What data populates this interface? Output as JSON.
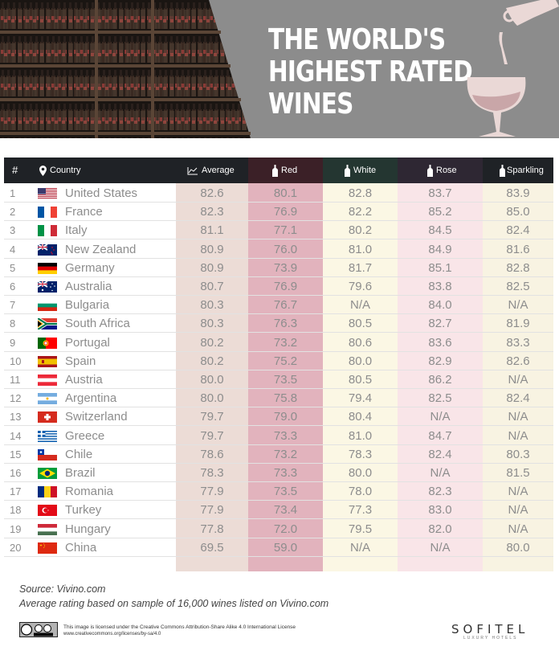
{
  "title": "THE WORLD'S\nHIGHEST RATED\nWINES",
  "colors": {
    "average_col": "#ecdcd6",
    "red_col": "#e2b3bd",
    "white_col": "#fbf7e4",
    "rose_col": "#f9e5e8",
    "sparkling_col": "#f8f3e2",
    "header_bg": "#1f2226",
    "red_header": "#3b2027",
    "white_header": "#243631",
    "rose_header": "#2e2733"
  },
  "chart_data": {
    "type": "table",
    "columns": [
      "#",
      "Country",
      "Average",
      "Red",
      "White",
      "Rose",
      "Sparkling"
    ],
    "rows": [
      {
        "rank": "1",
        "country": "United States",
        "flag": "us-flag",
        "average": "82.6",
        "red": "80.1",
        "white": "82.8",
        "rose": "83.7",
        "sparkling": "83.9"
      },
      {
        "rank": "2",
        "country": "France",
        "flag": "france-flag",
        "average": "82.3",
        "red": "76.9",
        "white": "82.2",
        "rose": "85.2",
        "sparkling": "85.0"
      },
      {
        "rank": "3",
        "country": "Italy",
        "flag": "italy-flag",
        "average": "81.1",
        "red": "77.1",
        "white": "80.2",
        "rose": "84.5",
        "sparkling": "82.4"
      },
      {
        "rank": "4",
        "country": "New Zealand",
        "flag": "new-zealand-flag",
        "average": "80.9",
        "red": "76.0",
        "white": "81.0",
        "rose": "84.9",
        "sparkling": "81.6"
      },
      {
        "rank": "5",
        "country": "Germany",
        "flag": "germany-flag",
        "average": "80.9",
        "red": "73.9",
        "white": "81.7",
        "rose": "85.1",
        "sparkling": "82.8"
      },
      {
        "rank": "6",
        "country": "Australia",
        "flag": "australia-flag",
        "average": "80.7",
        "red": "76.9",
        "white": "79.6",
        "rose": "83.8",
        "sparkling": "82.5"
      },
      {
        "rank": "7",
        "country": "Bulgaria",
        "flag": "bulgaria-flag",
        "average": "80.3",
        "red": "76.7",
        "white": "N/A",
        "rose": "84.0",
        "sparkling": "N/A"
      },
      {
        "rank": "8",
        "country": "South Africa",
        "flag": "south-africa-flag",
        "average": "80.3",
        "red": "76.3",
        "white": "80.5",
        "rose": "82.7",
        "sparkling": "81.9"
      },
      {
        "rank": "9",
        "country": "Portugal",
        "flag": "portugal-flag",
        "average": "80.2",
        "red": "73.2",
        "white": "80.6",
        "rose": "83.6",
        "sparkling": "83.3"
      },
      {
        "rank": "10",
        "country": "Spain",
        "flag": "spain-flag",
        "average": "80.2",
        "red": "75.2",
        "white": "80.0",
        "rose": "82.9",
        "sparkling": "82.6"
      },
      {
        "rank": "11",
        "country": "Austria",
        "flag": "austria-flag",
        "average": "80.0",
        "red": "73.5",
        "white": "80.5",
        "rose": "86.2",
        "sparkling": "N/A"
      },
      {
        "rank": "12",
        "country": "Argentina",
        "flag": "argentina-flag",
        "average": "80.0",
        "red": "75.8",
        "white": "79.4",
        "rose": "82.5",
        "sparkling": "82.4"
      },
      {
        "rank": "13",
        "country": "Switzerland",
        "flag": "switzerland-flag",
        "average": "79.7",
        "red": "79.0",
        "white": "80.4",
        "rose": "N/A",
        "sparkling": "N/A"
      },
      {
        "rank": "14",
        "country": "Greece",
        "flag": "greece-flag",
        "average": "79.7",
        "red": "73.3",
        "white": "81.0",
        "rose": "84.7",
        "sparkling": "N/A"
      },
      {
        "rank": "15",
        "country": "Chile",
        "flag": "chile-flag",
        "average": "78.6",
        "red": "73.2",
        "white": "78.3",
        "rose": "82.4",
        "sparkling": "80.3"
      },
      {
        "rank": "16",
        "country": "Brazil",
        "flag": "brazil-flag",
        "average": "78.3",
        "red": "73.3",
        "white": "80.0",
        "rose": "N/A",
        "sparkling": "81.5"
      },
      {
        "rank": "17",
        "country": "Romania",
        "flag": "romania-flag",
        "average": "77.9",
        "red": "73.5",
        "white": "78.0",
        "rose": "82.3",
        "sparkling": "N/A"
      },
      {
        "rank": "18",
        "country": "Turkey",
        "flag": "turkey-flag",
        "average": "77.9",
        "red": "73.4",
        "white": "77.3",
        "rose": "83.0",
        "sparkling": "N/A"
      },
      {
        "rank": "19",
        "country": "Hungary",
        "flag": "hungary-flag",
        "average": "77.8",
        "red": "72.0",
        "white": "79.5",
        "rose": "82.0",
        "sparkling": "N/A"
      },
      {
        "rank": "20",
        "country": "China",
        "flag": "china-flag",
        "average": "69.5",
        "red": "59.0",
        "white": "N/A",
        "rose": "N/A",
        "sparkling": "80.0"
      }
    ]
  },
  "footer": {
    "source": "Source: Vivino.com",
    "note": "Average rating based on sample of 16,000 wines listed on Vivino.com",
    "license_line1": "This image is licensed under the Creative Commons Attribution-Share Alike 4.0 International License",
    "license_line2": "www.creativecommons.org/licenses/by-sa/4.0",
    "brand": "SOFITEL",
    "brand_sub": "LUXURY HOTELS"
  }
}
